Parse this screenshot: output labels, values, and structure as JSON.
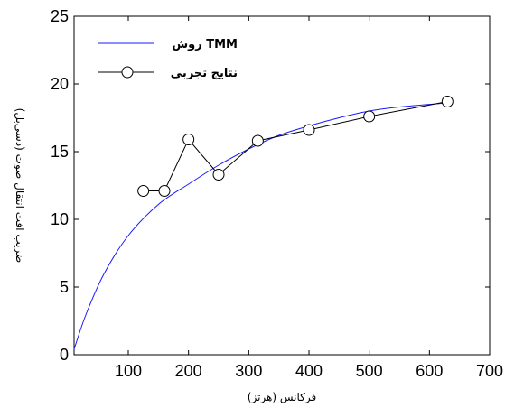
{
  "chart_data": {
    "type": "line",
    "title": "",
    "xlabel": "فرکانس (هرتز)",
    "ylabel": "ضریب افت انتقال صوت (دسی‌بل)",
    "xlim": [
      10,
      700
    ],
    "ylim": [
      0,
      25
    ],
    "xticks": [
      100,
      200,
      300,
      400,
      500,
      600,
      700
    ],
    "yticks": [
      0,
      5,
      10,
      15,
      20,
      25
    ],
    "grid": false,
    "legend_position": "top-left",
    "series": [
      {
        "name": "روش TMM",
        "style": "line",
        "color": "#1a1aff",
        "x": [
          10,
          30,
          60,
          100,
          150,
          200,
          250,
          300,
          350,
          400,
          450,
          500,
          550,
          630
        ],
        "y": [
          0.4,
          3.0,
          6.0,
          8.8,
          11.1,
          12.6,
          14.0,
          15.2,
          16.2,
          16.9,
          17.5,
          18.0,
          18.3,
          18.6
        ]
      },
      {
        "name": "نتایج تجربی",
        "style": "line-marker",
        "marker": "circle",
        "color": "#000000",
        "x": [
          125,
          160,
          200,
          250,
          315,
          400,
          500,
          630
        ],
        "y": [
          12.1,
          12.1,
          15.9,
          13.3,
          15.8,
          16.6,
          17.6,
          18.7
        ]
      }
    ]
  }
}
